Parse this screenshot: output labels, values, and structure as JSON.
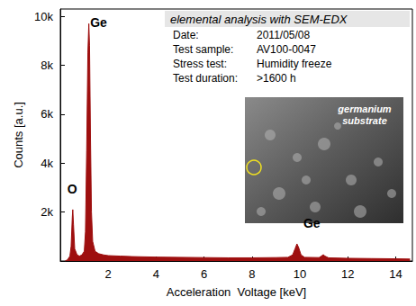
{
  "chart_data": {
    "type": "area",
    "x_label": "Acceleration  Voltage [keV]",
    "y_label": "Counts [a.u.]",
    "color": "#9e0f0f",
    "x": [
      0.2,
      0.3,
      0.4,
      0.45,
      0.5,
      0.52,
      0.55,
      0.6,
      0.7,
      0.8,
      0.9,
      1.0,
      1.05,
      1.1,
      1.15,
      1.19,
      1.22,
      1.26,
      1.3,
      1.35,
      1.45,
      1.6,
      1.8,
      2.0,
      2.5,
      3.0,
      4.0,
      5.0,
      6.0,
      7.0,
      8.0,
      9.0,
      9.5,
      9.7,
      9.8,
      9.88,
      9.95,
      10.05,
      10.2,
      10.8,
      10.9,
      10.98,
      11.05,
      11.2,
      12.0,
      13.0,
      14.0,
      14.6
    ],
    "values": [
      0,
      50,
      200,
      600,
      1800,
      2100,
      1500,
      500,
      250,
      200,
      250,
      400,
      1200,
      4500,
      8500,
      9700,
      8800,
      5000,
      2000,
      800,
      400,
      300,
      250,
      220,
      200,
      180,
      160,
      150,
      140,
      130,
      130,
      140,
      150,
      250,
      500,
      700,
      550,
      250,
      150,
      140,
      200,
      260,
      200,
      130,
      110,
      100,
      90,
      80
    ],
    "xlim": [
      0,
      14.7
    ],
    "xticks": [
      2,
      4,
      6,
      8,
      10,
      12,
      14
    ],
    "ylim": [
      0,
      10300
    ],
    "yticks": [
      {
        "value": 2000,
        "label": "2k"
      },
      {
        "value": 4000,
        "label": "4k"
      },
      {
        "value": 6000,
        "label": "6k"
      },
      {
        "value": 8000,
        "label": "8k"
      },
      {
        "value": 10000,
        "label": "10k"
      }
    ],
    "grid": false,
    "annotations": [
      {
        "text": "O",
        "x": 0.5,
        "y": 2700
      },
      {
        "text": "Ge",
        "x": 1.6,
        "y": 9500
      },
      {
        "text": "Ge",
        "x": 10.5,
        "y": 1300
      }
    ],
    "inset": {
      "title": "elemental analysis with SEM-EDX",
      "rows": [
        {
          "label": "Date:",
          "value": "2011/05/08"
        },
        {
          "label": "Test sample:",
          "value": "AV100-0047"
        },
        {
          "label": "Stress test:",
          "value": "Humidity freeze"
        },
        {
          "label": "Test duration:",
          "value": ">1600 h"
        }
      ],
      "image_label": "germanium substrate"
    }
  }
}
